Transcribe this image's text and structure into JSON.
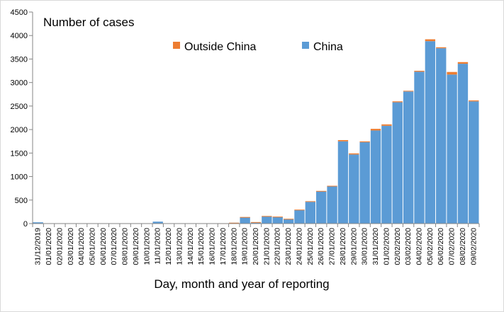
{
  "chart_data": {
    "type": "bar",
    "stacked": true,
    "title": "Number of cases",
    "xlabel": "Day, month and year of reporting",
    "ylabel": "",
    "ylim": [
      0,
      4500
    ],
    "yticks": [
      0,
      500,
      1000,
      1500,
      2000,
      2500,
      3000,
      3500,
      4000,
      4500
    ],
    "grid": false,
    "legend_position": "top",
    "categories": [
      "31/12/2019",
      "01/01/2020",
      "02/01/2020",
      "03/01/2020",
      "04/01/2020",
      "05/01/2020",
      "06/01/2020",
      "07/01/2020",
      "08/01/2020",
      "09/01/2020",
      "10/01/2020",
      "11/01/2020",
      "12/01/2020",
      "13/01/2020",
      "14/01/2020",
      "15/01/2020",
      "16/01/2020",
      "17/01/2020",
      "18/01/2020",
      "19/01/2020",
      "20/01/2020",
      "21/01/2020",
      "22/01/2020",
      "23/01/2020",
      "24/01/2020",
      "25/01/2020",
      "26/01/2020",
      "27/01/2020",
      "28/01/2020",
      "29/01/2020",
      "30/01/2020",
      "31/01/2020",
      "01/02/2020",
      "02/02/2020",
      "03/02/2020",
      "04/02/2020",
      "05/02/2020",
      "06/02/2020",
      "07/02/2020",
      "08/02/2020",
      "09/02/2020"
    ],
    "series": [
      {
        "name": "China",
        "color": "#5b9bd5",
        "values": [
          27,
          0,
          0,
          0,
          0,
          0,
          0,
          0,
          0,
          0,
          0,
          41,
          0,
          0,
          0,
          0,
          0,
          4,
          17,
          136,
          20,
          151,
          140,
          97,
          287,
          462,
          683,
          790,
          1750,
          1470,
          1730,
          1980,
          2080,
          2580,
          2810,
          3230,
          3880,
          3730,
          3170,
          3400,
          2600
        ]
      },
      {
        "name": "Outside China",
        "color": "#ed7d31",
        "values": [
          0,
          0,
          0,
          0,
          0,
          0,
          0,
          0,
          0,
          0,
          0,
          0,
          0,
          0,
          0,
          0,
          0,
          3,
          1,
          4,
          12,
          10,
          8,
          5,
          10,
          14,
          12,
          14,
          26,
          23,
          18,
          35,
          30,
          20,
          15,
          20,
          40,
          20,
          55,
          35,
          20
        ]
      }
    ],
    "legend": [
      {
        "name": "Outside China",
        "color": "#ed7d31"
      },
      {
        "name": "China",
        "color": "#5b9bd5"
      }
    ]
  }
}
